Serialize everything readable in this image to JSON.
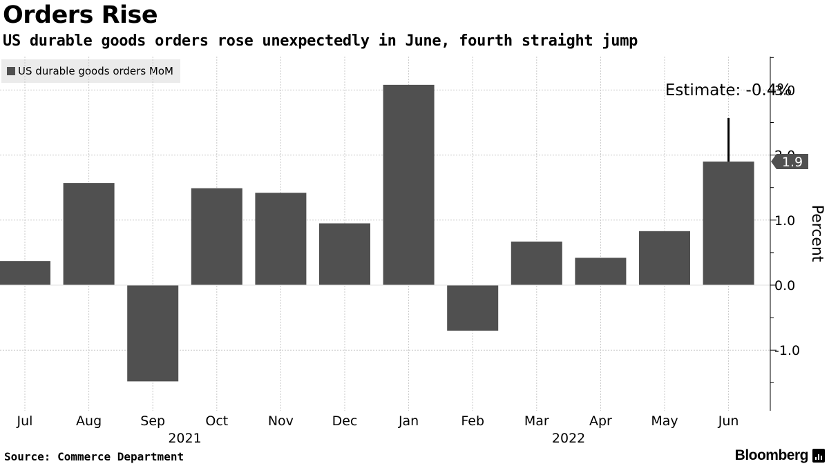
{
  "header": {
    "title": "Orders Rise",
    "subtitle": "US durable goods orders rose unexpectedly in June, fourth straight jump"
  },
  "footer": {
    "source": "Source: Commerce Department",
    "brand": "Bloomberg"
  },
  "colors": {
    "bar": "#505050",
    "grid": "#c8c8c8",
    "axis": "#000000",
    "legend_bg": "#ebebeb",
    "callout_bg": "#505050"
  },
  "chart_data": {
    "type": "bar",
    "title": "Orders Rise",
    "subtitle": "US durable goods orders rose unexpectedly in June, fourth straight jump",
    "categories": [
      "Jul",
      "Aug",
      "Sep",
      "Oct",
      "Nov",
      "Dec",
      "Jan",
      "Feb",
      "Mar",
      "Apr",
      "May",
      "Jun"
    ],
    "year_labels": [
      {
        "label": "2021",
        "after_category": "Sep"
      },
      {
        "label": "2022",
        "after_category": "Mar"
      }
    ],
    "series": [
      {
        "name": "US durable goods orders MoM",
        "values": [
          0.37,
          1.57,
          -1.48,
          1.49,
          1.42,
          0.95,
          3.08,
          -0.7,
          0.67,
          0.42,
          0.83,
          1.9
        ]
      }
    ],
    "ylabel": "Percent",
    "xlabel": "",
    "ylim": [
      -1.9,
      3.5
    ],
    "yticks": [
      3.0,
      2.0,
      1.0,
      0.0,
      -1.0
    ],
    "ytick_labels": [
      "3.0",
      "2.0",
      "1.0",
      "0.0",
      "-1.0"
    ],
    "grid": true,
    "legend": "top-left",
    "annotations": {
      "estimate_label": "Estimate: -0.4%",
      "estimate_category": "Jun",
      "estimate_line_top_value": 2.57,
      "last_value_label": "1.9",
      "last_value": 1.9
    }
  }
}
